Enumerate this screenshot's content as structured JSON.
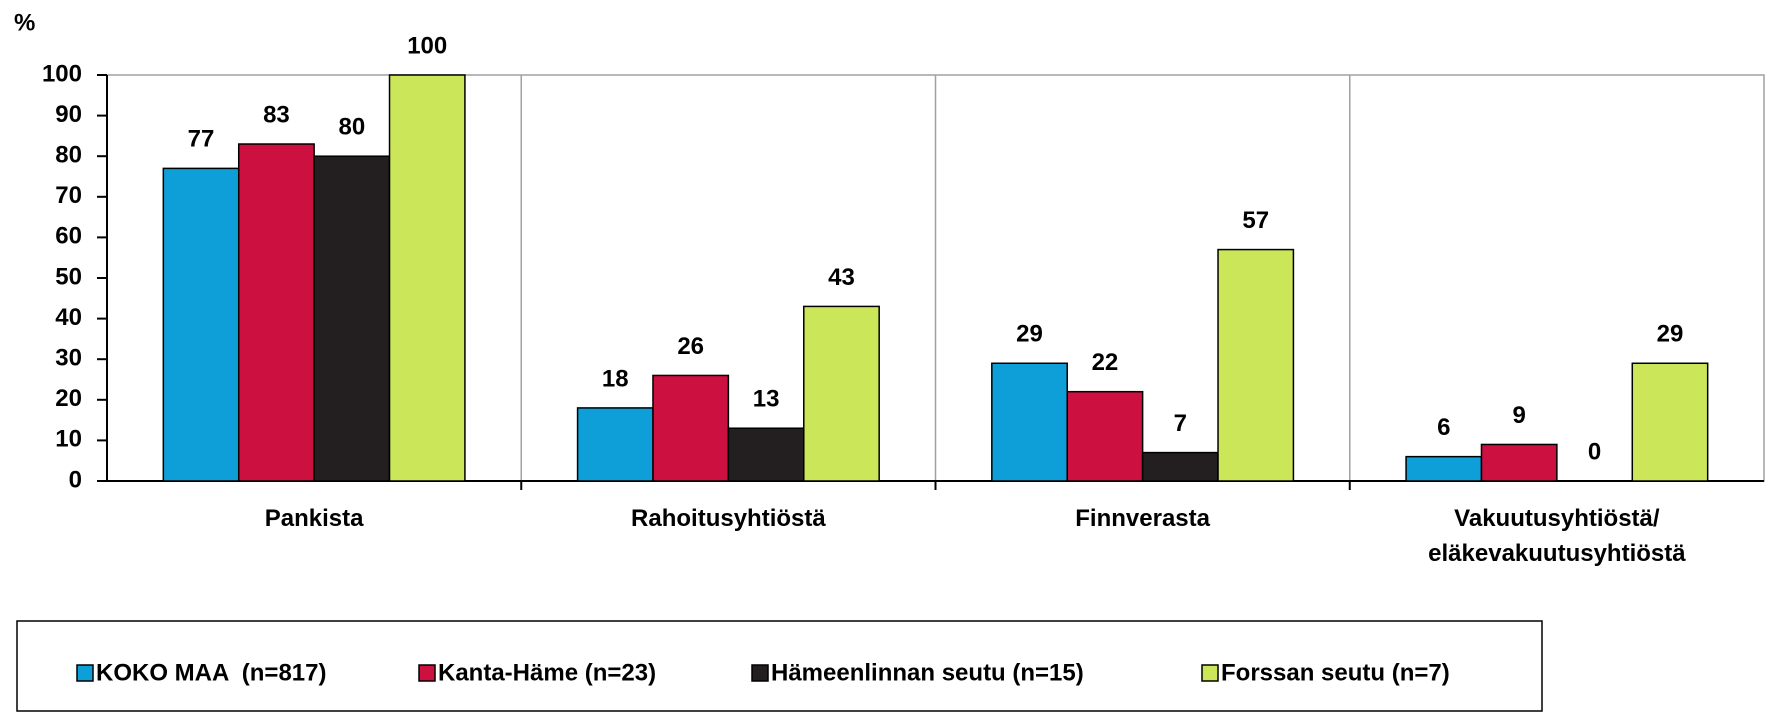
{
  "chart_data": {
    "type": "bar",
    "y_unit": "%",
    "categories": [
      "Pankista",
      "Rahoitusyhtiöstä",
      "Finnverasta",
      "Vakuutusyhtiöstä/\neläkevakuutusyhtiöstä"
    ],
    "series": [
      {
        "name": "KOKO MAA  (n=817)",
        "color": "#0f9fd8",
        "values": [
          77,
          18,
          29,
          6
        ]
      },
      {
        "name": "Kanta-Häme (n=23)",
        "color": "#cc1040",
        "values": [
          83,
          26,
          22,
          9
        ]
      },
      {
        "name": "Hämeenlinnan seutu (n=15)",
        "color": "#231f20",
        "values": [
          80,
          13,
          7,
          0
        ]
      },
      {
        "name": "Forssan seutu (n=7)",
        "color": "#cce65a",
        "values": [
          100,
          43,
          57,
          29
        ]
      }
    ],
    "ylim": [
      0,
      100
    ],
    "yticks": [
      0,
      10,
      20,
      30,
      40,
      50,
      60,
      70,
      80,
      90,
      100
    ],
    "legend": "bottom"
  }
}
